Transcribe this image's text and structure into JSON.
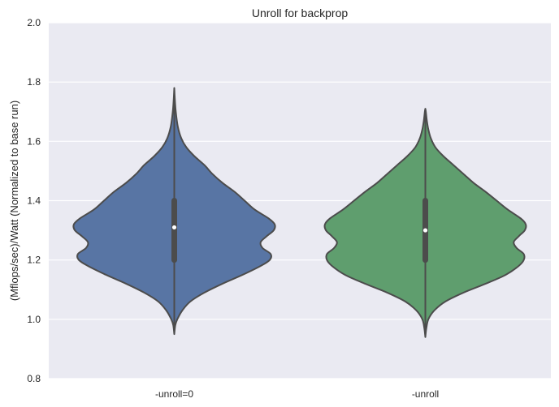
{
  "chart_data": {
    "type": "violin",
    "title": "Unroll for backprop",
    "xlabel": "",
    "ylabel": "(Mflops/sec)/Watt (Normalized to base run)",
    "ylim": [
      0.8,
      2.0
    ],
    "yticks": [
      "0.8",
      "1.0",
      "1.2",
      "1.4",
      "1.6",
      "1.8",
      "2.0"
    ],
    "grid": true,
    "categories": [
      "-unroll=0",
      "-unroll"
    ],
    "series": [
      {
        "category": "-unroll=0",
        "color": "#5875A4",
        "min": 0.95,
        "max": 1.78,
        "q1": 1.2,
        "median": 1.31,
        "q3": 1.4,
        "density": [
          [
            0.95,
            0.0
          ],
          [
            0.98,
            0.01
          ],
          [
            1.0,
            0.03
          ],
          [
            1.03,
            0.08
          ],
          [
            1.06,
            0.16
          ],
          [
            1.09,
            0.3
          ],
          [
            1.12,
            0.48
          ],
          [
            1.15,
            0.68
          ],
          [
            1.18,
            0.86
          ],
          [
            1.2,
            0.95
          ],
          [
            1.22,
            0.96
          ],
          [
            1.24,
            0.88
          ],
          [
            1.26,
            0.86
          ],
          [
            1.28,
            0.92
          ],
          [
            1.3,
            0.99
          ],
          [
            1.32,
            1.0
          ],
          [
            1.34,
            0.94
          ],
          [
            1.37,
            0.8
          ],
          [
            1.4,
            0.7
          ],
          [
            1.43,
            0.6
          ],
          [
            1.46,
            0.48
          ],
          [
            1.49,
            0.38
          ],
          [
            1.52,
            0.3
          ],
          [
            1.55,
            0.2
          ],
          [
            1.58,
            0.12
          ],
          [
            1.61,
            0.07
          ],
          [
            1.65,
            0.035
          ],
          [
            1.7,
            0.015
          ],
          [
            1.74,
            0.006
          ],
          [
            1.78,
            0.0
          ]
        ]
      },
      {
        "category": "-unroll",
        "color": "#5F9E6E",
        "min": 0.94,
        "max": 1.71,
        "q1": 1.2,
        "median": 1.3,
        "q3": 1.4,
        "density": [
          [
            0.94,
            0.0
          ],
          [
            0.97,
            0.01
          ],
          [
            1.0,
            0.03
          ],
          [
            1.03,
            0.09
          ],
          [
            1.06,
            0.2
          ],
          [
            1.09,
            0.38
          ],
          [
            1.12,
            0.6
          ],
          [
            1.15,
            0.8
          ],
          [
            1.18,
            0.93
          ],
          [
            1.2,
            0.98
          ],
          [
            1.22,
            0.98
          ],
          [
            1.24,
            0.91
          ],
          [
            1.26,
            0.88
          ],
          [
            1.28,
            0.93
          ],
          [
            1.3,
            0.99
          ],
          [
            1.32,
            1.0
          ],
          [
            1.34,
            0.95
          ],
          [
            1.37,
            0.82
          ],
          [
            1.4,
            0.71
          ],
          [
            1.43,
            0.6
          ],
          [
            1.46,
            0.48
          ],
          [
            1.49,
            0.38
          ],
          [
            1.52,
            0.28
          ],
          [
            1.55,
            0.18
          ],
          [
            1.58,
            0.1
          ],
          [
            1.61,
            0.055
          ],
          [
            1.64,
            0.03
          ],
          [
            1.67,
            0.015
          ],
          [
            1.7,
            0.005
          ],
          [
            1.71,
            0.0
          ]
        ]
      }
    ]
  }
}
